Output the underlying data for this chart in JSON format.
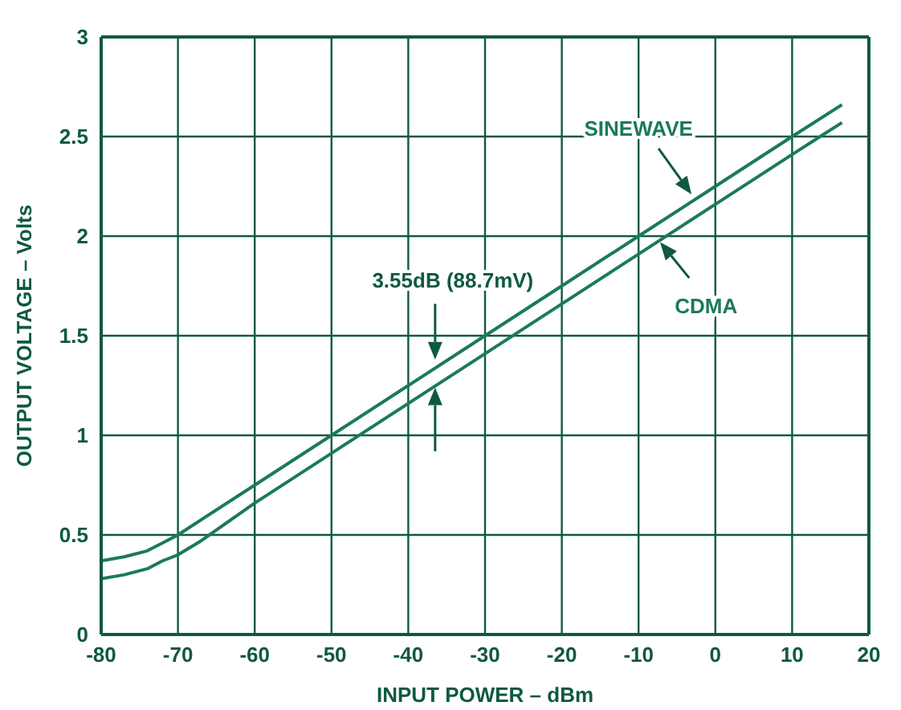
{
  "chart_data": {
    "type": "line",
    "xlabel": "INPUT POWER – dBm",
    "ylabel": "OUTPUT VOLTAGE – Volts",
    "xlim": [
      -80,
      20
    ],
    "xticks": [
      -80,
      -70,
      -60,
      -50,
      -40,
      -30,
      -20,
      -10,
      0,
      10,
      20
    ],
    "ylim": [
      0,
      3
    ],
    "yticks": [
      0,
      0.5,
      1,
      1.5,
      2,
      2.5,
      3
    ],
    "grid": true,
    "legend": false,
    "marker": "none",
    "line_style": "solid",
    "annotations": [
      "3.55dB (88.7mV)"
    ],
    "series": [
      {
        "name": "SINEWAVE",
        "color": "#1b7a5a",
        "x": [
          -80,
          -77,
          -74,
          -72,
          -70,
          -60,
          -50,
          -40,
          -30,
          -20,
          -10,
          0,
          10,
          16.5
        ],
        "values": [
          0.37,
          0.39,
          0.42,
          0.46,
          0.5,
          0.75,
          1.0,
          1.25,
          1.5,
          1.75,
          2.0,
          2.25,
          2.5,
          2.66
        ]
      },
      {
        "name": "CDMA",
        "color": "#1b7a5a",
        "x": [
          -80,
          -77,
          -74,
          -72,
          -70,
          -67,
          -60,
          -50,
          -40,
          -30,
          -20,
          -10,
          0,
          10,
          16.5
        ],
        "values": [
          0.28,
          0.3,
          0.33,
          0.37,
          0.4,
          0.47,
          0.66,
          0.91,
          1.16,
          1.41,
          1.66,
          1.91,
          2.16,
          2.41,
          2.57
        ]
      }
    ]
  }
}
